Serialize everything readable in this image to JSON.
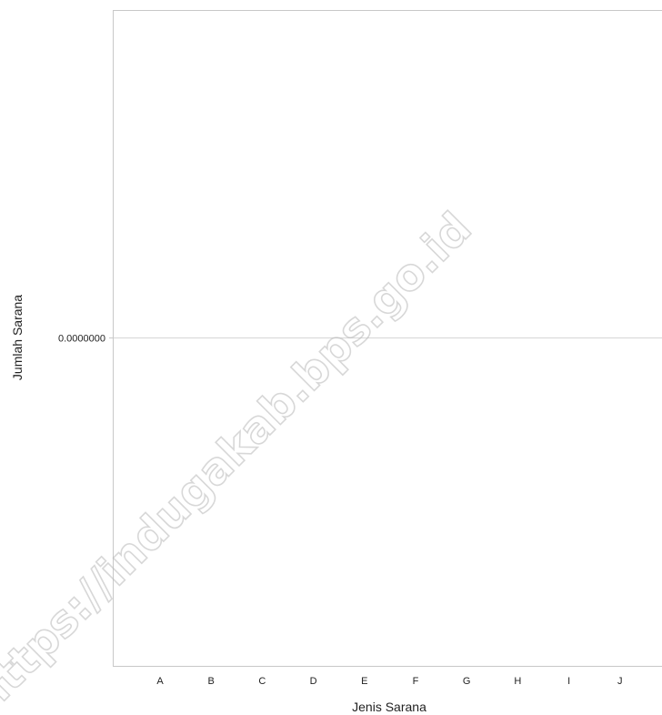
{
  "chart_data": {
    "type": "bar",
    "categories": [
      "A",
      "B",
      "C",
      "D",
      "E",
      "F",
      "G",
      "H",
      "I",
      "J"
    ],
    "values": [
      0,
      0,
      0,
      0,
      0,
      0,
      0,
      0,
      0,
      0
    ],
    "title": "",
    "xlabel": "Jenis Sarana",
    "ylabel": "Jumlah Sarana",
    "y_ticks": [
      "0.0000000"
    ],
    "ylim": [
      -1,
      1
    ],
    "grid": true,
    "legend": "none"
  },
  "watermark": {
    "text": "https://indugakab.bps.go.id"
  },
  "colors": {
    "axis": "#c8c8c8",
    "grid": "#d6d6d6",
    "text": "#222222"
  }
}
